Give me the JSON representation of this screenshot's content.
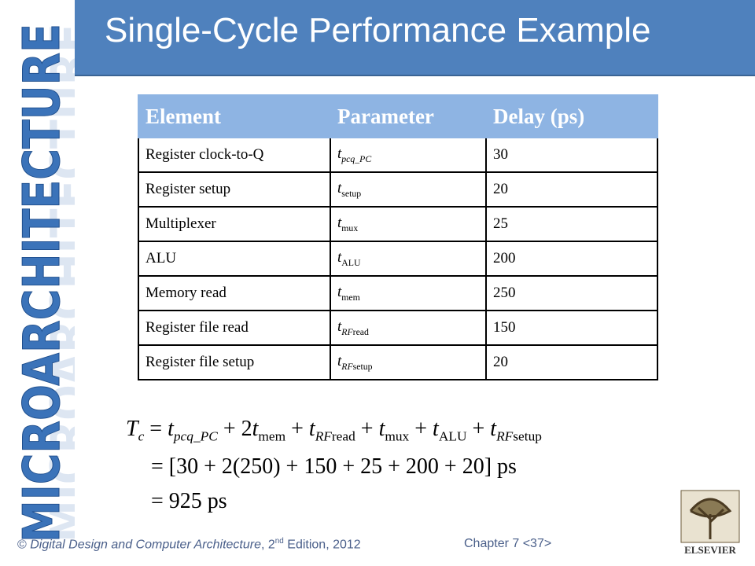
{
  "header": {
    "title": "Single-Cycle Performance Example"
  },
  "logo": {
    "text": "MICROARCHITECTURE"
  },
  "table": {
    "headers": [
      "Element",
      "Parameter",
      "Delay (ps)"
    ],
    "rows": [
      {
        "element": "Register clock-to-Q",
        "parameter": [
          {
            "t": "t",
            "i": true
          },
          {
            "t": "pcq_PC",
            "i": true,
            "sub": true
          }
        ],
        "delay": 30
      },
      {
        "element": "Register setup",
        "parameter": [
          {
            "t": "t",
            "i": true
          },
          {
            "t": "setup",
            "sub": true
          }
        ],
        "delay": 20
      },
      {
        "element": "Multiplexer",
        "parameter": [
          {
            "t": "t",
            "i": true
          },
          {
            "t": "mux",
            "sub": true
          }
        ],
        "delay": 25
      },
      {
        "element": "ALU",
        "parameter": [
          {
            "t": "t",
            "i": true
          },
          {
            "t": "ALU",
            "sub": true
          }
        ],
        "delay": 200
      },
      {
        "element": "Memory read",
        "parameter": [
          {
            "t": "t",
            "i": true
          },
          {
            "t": "mem",
            "sub": true
          }
        ],
        "delay": 250
      },
      {
        "element": "Register file read",
        "parameter": [
          {
            "t": "t",
            "i": true
          },
          {
            "t": "RF",
            "i": true,
            "sub": true
          },
          {
            "t": "read",
            "sub": true
          }
        ],
        "delay": 150
      },
      {
        "element": "Register file setup",
        "parameter": [
          {
            "t": "t",
            "i": true
          },
          {
            "t": "RF",
            "i": true,
            "sub": true
          },
          {
            "t": "setup",
            "sub": true
          }
        ],
        "delay": 20
      }
    ]
  },
  "equation": {
    "line1": [
      {
        "t": "T",
        "i": true
      },
      {
        "t": "c",
        "i": true,
        "sub": true
      },
      {
        "t": " = "
      },
      {
        "t": "t",
        "i": true
      },
      {
        "t": "pcq_PC",
        "i": true,
        "sub": true
      },
      {
        "t": " + 2"
      },
      {
        "t": "t",
        "i": true
      },
      {
        "t": "mem",
        "sub": true
      },
      {
        "t": " + "
      },
      {
        "t": "t",
        "i": true
      },
      {
        "t": "RF",
        "i": true,
        "sub": true
      },
      {
        "t": "read",
        "sub": true
      },
      {
        "t": " + "
      },
      {
        "t": "t",
        "i": true
      },
      {
        "t": "mux",
        "sub": true
      },
      {
        "t": " + "
      },
      {
        "t": "t",
        "i": true
      },
      {
        "t": "ALU",
        "sub": true
      },
      {
        "t": " + "
      },
      {
        "t": "t",
        "i": true
      },
      {
        "t": "RF",
        "i": true,
        "sub": true
      },
      {
        "t": "setup",
        "sub": true
      }
    ],
    "line2": "= [30 + 2(250) + 150 + 25 + 200 + 20] ps",
    "line3": "= 925 ps"
  },
  "footer": {
    "credit": [
      {
        "t": "© "
      },
      {
        "t": "Digital Design and Computer Architecture",
        "i": true
      },
      {
        "t": ", 2"
      },
      {
        "t": "nd",
        "sup": true
      },
      {
        "t": " Edition, 2012"
      }
    ],
    "chapter": "Chapter 7 <37>"
  },
  "publisher": "ELSEVIER"
}
